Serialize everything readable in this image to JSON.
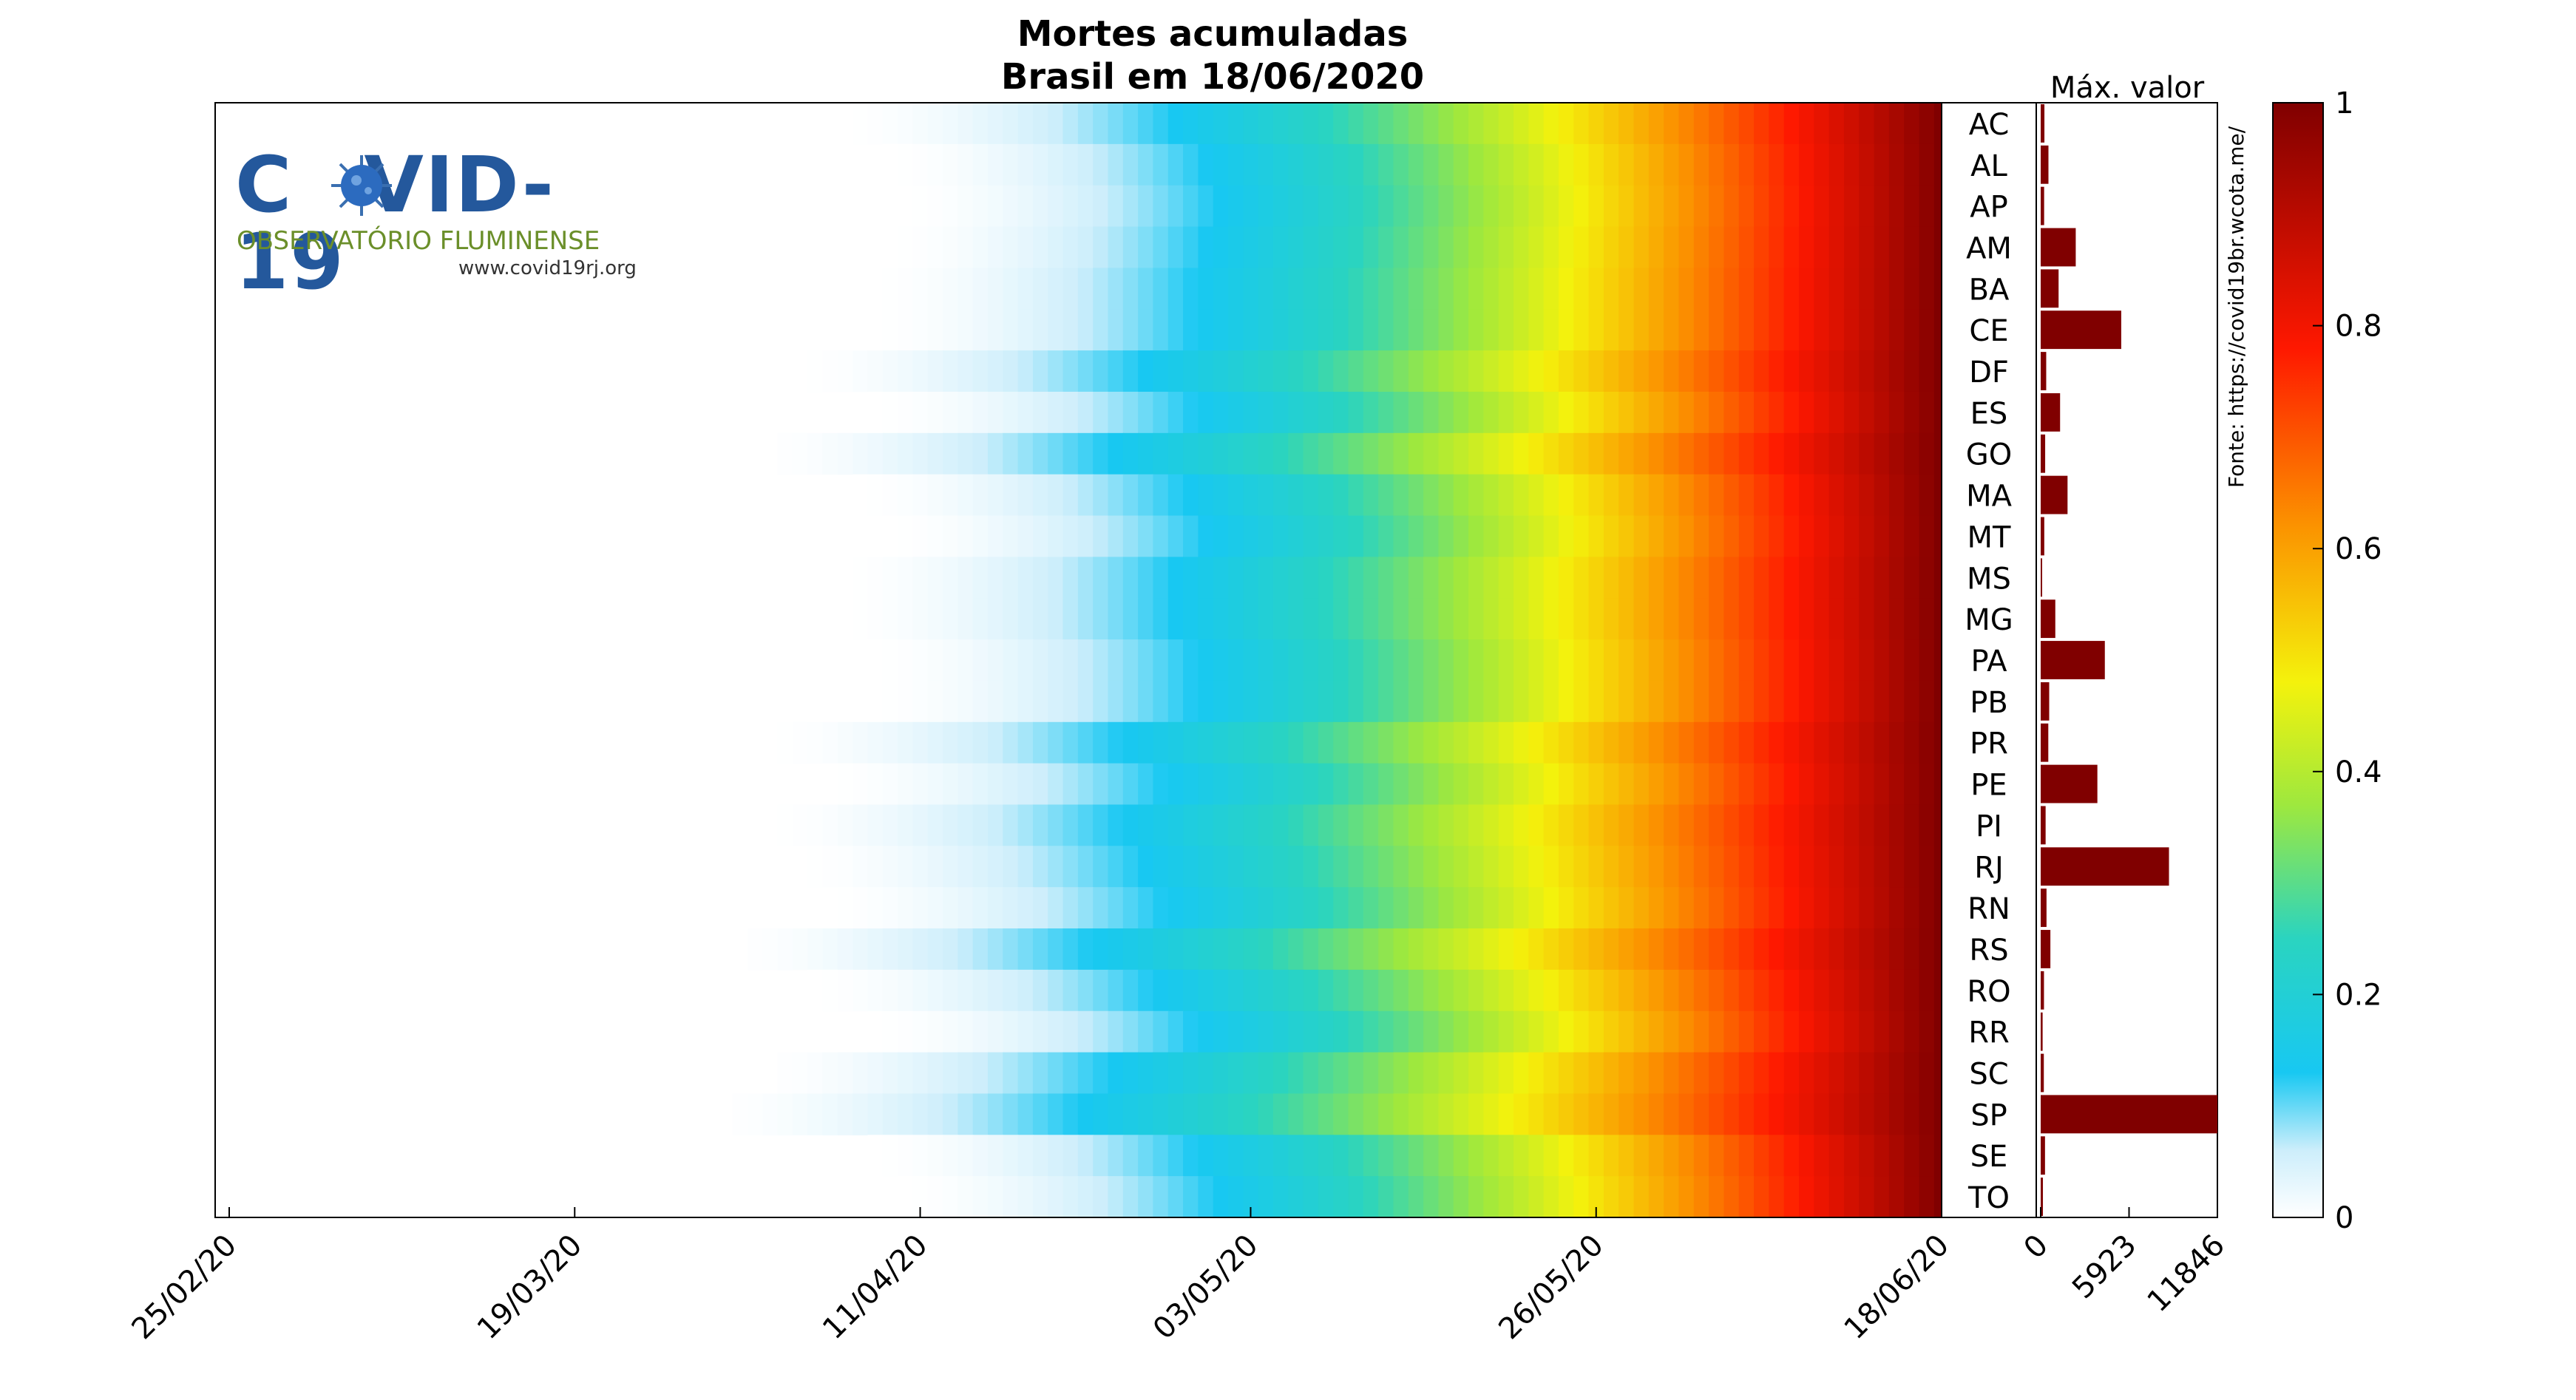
{
  "chart_data": {
    "type": "heatmap",
    "title": "Mortes acumuladas",
    "subtitle": "Brasil em 18/06/2020",
    "x_tick_labels": [
      "25/02/20",
      "19/03/20",
      "11/04/20",
      "03/05/20",
      "26/05/20",
      "18/06/20"
    ],
    "x_range": [
      "25/02/20",
      "18/06/20"
    ],
    "states": [
      "AC",
      "AL",
      "AP",
      "AM",
      "BA",
      "CE",
      "DF",
      "ES",
      "GO",
      "MA",
      "MT",
      "MS",
      "MG",
      "PA",
      "PB",
      "PR",
      "PE",
      "PI",
      "RJ",
      "RN",
      "RS",
      "RO",
      "RR",
      "SC",
      "SP",
      "SE",
      "TO"
    ],
    "first_death_dates": [
      "06/04/20",
      "09/04/20",
      "10/04/20",
      "09/04/20",
      "08/04/20",
      "08/04/20",
      "03/04/20",
      "08/04/20",
      "31/03/20",
      "07/04/20",
      "09/04/20",
      "06/04/20",
      "06/04/20",
      "08/04/20",
      "08/04/20",
      "01/04/20",
      "05/04/20",
      "01/04/20",
      "03/04/20",
      "05/04/20",
      "29/03/20",
      "04/04/20",
      "08/04/20",
      "31/03/20",
      "28/03/20",
      "08/04/20",
      "10/04/20"
    ],
    "colorbar": {
      "label": "",
      "range": [
        0,
        1
      ],
      "ticks": [
        "0",
        "0.2",
        "0.4",
        "0.6",
        "0.8",
        "1"
      ],
      "colormap": "jet-like white-cyan-green-yellow-red-darkred"
    },
    "side_bar": {
      "title": "Máx. valor",
      "ticks": [
        "0",
        "5923",
        "11846"
      ],
      "xlim": [
        0,
        11846
      ],
      "values": [
        250,
        520,
        230,
        2350,
        1200,
        5400,
        370,
        1300,
        300,
        1800,
        240,
        50,
        980,
        4300,
        570,
        510,
        3800,
        330,
        8600,
        390,
        650,
        220,
        130,
        210,
        11846,
        290,
        150
      ]
    },
    "source_text": "Fonte: https://covid19br.wcota.me/"
  },
  "logo": {
    "title_left": "C",
    "title_right": "VID-19",
    "subtitle": "OBSERVATÓRIO FLUMINENSE",
    "url": "www.covid19rj.org"
  },
  "colors": {
    "axis": "#000000",
    "bar": "#800000",
    "logo_blue": "#24589c",
    "logo_green": "#6b8f2a"
  }
}
